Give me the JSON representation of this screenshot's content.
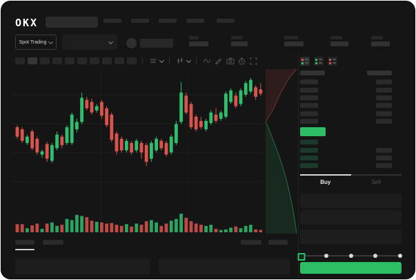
{
  "colors": {
    "up_green": "#2fbd6e",
    "down_red": "#d9544d",
    "accent_green": "#2dbd64",
    "bid_row_green": "#1b3a2b",
    "background": "#151515"
  },
  "header": {
    "logo_text": "OKX",
    "search_value": "",
    "nav_placeholder_count": 5
  },
  "subheader": {
    "market_type_label": "Spot Trading",
    "pair_selector_value": "",
    "stat_placeholder_count": 5
  },
  "chart_toolbar": {
    "timeframe_placeholder_count": 10,
    "active_timeframe_index": 1,
    "icons": [
      "interval-dropdown",
      "chart-type-dropdown",
      "indicators",
      "draw",
      "screenshot",
      "timer",
      "fullscreen"
    ]
  },
  "chart_data": [
    {
      "type": "candlestick",
      "title": "",
      "xlabel": "",
      "ylabel": "",
      "ylim": [
        0,
        100
      ],
      "grid": true,
      "values_normalized_0_100": true,
      "note_visible_labels": "no axis tick labels visible in screenshot",
      "candles_ohlc": [
        [
          50,
          52,
          39,
          41
        ],
        [
          48,
          50,
          35,
          37
        ],
        [
          35,
          43,
          33,
          41
        ],
        [
          46,
          48,
          28,
          30
        ],
        [
          39,
          41,
          24,
          26
        ],
        [
          24,
          29,
          21,
          27
        ],
        [
          34,
          36,
          17,
          20
        ],
        [
          18,
          35,
          16,
          33
        ],
        [
          30,
          46,
          28,
          43
        ],
        [
          41,
          43,
          30,
          33
        ],
        [
          35,
          52,
          33,
          50
        ],
        [
          35,
          64,
          33,
          62
        ],
        [
          48,
          58,
          45,
          55
        ],
        [
          55,
          83,
          53,
          78
        ],
        [
          76,
          79,
          66,
          68
        ],
        [
          74,
          77,
          62,
          64
        ],
        [
          66,
          72,
          64,
          70
        ],
        [
          74,
          76,
          58,
          61
        ],
        [
          68,
          70,
          50,
          52
        ],
        [
          62,
          64,
          36,
          38
        ],
        [
          44,
          46,
          24,
          27
        ],
        [
          39,
          41,
          26,
          28
        ],
        [
          28,
          39,
          26,
          37
        ],
        [
          35,
          37,
          24,
          26
        ],
        [
          28,
          39,
          26,
          37
        ],
        [
          35,
          37,
          20,
          26
        ],
        [
          33,
          35,
          13,
          17
        ],
        [
          20,
          37,
          17,
          35
        ],
        [
          28,
          41,
          26,
          39
        ],
        [
          37,
          39,
          28,
          30
        ],
        [
          35,
          37,
          22,
          24
        ],
        [
          26,
          43,
          24,
          41
        ],
        [
          35,
          56,
          33,
          53
        ],
        [
          55,
          93,
          53,
          83
        ],
        [
          80,
          83,
          62,
          64
        ],
        [
          72,
          74,
          48,
          50
        ],
        [
          60,
          62,
          46,
          48
        ],
        [
          56,
          60,
          48,
          50
        ],
        [
          48,
          58,
          46,
          56
        ],
        [
          54,
          66,
          52,
          64
        ],
        [
          62,
          68,
          54,
          56
        ],
        [
          58,
          66,
          56,
          64
        ],
        [
          60,
          84,
          58,
          82
        ],
        [
          74,
          87,
          72,
          85
        ],
        [
          80,
          83,
          68,
          70
        ],
        [
          72,
          87,
          70,
          85
        ],
        [
          81,
          94,
          79,
          92
        ],
        [
          84,
          97,
          82,
          95
        ],
        [
          88,
          90,
          76,
          79
        ],
        [
          86,
          92,
          80,
          82
        ]
      ],
      "volumes": [
        28,
        28,
        14,
        24,
        30,
        12,
        30,
        34,
        22,
        26,
        46,
        42,
        60,
        56,
        52,
        40,
        36,
        34,
        30,
        32,
        26,
        22,
        28,
        20,
        30,
        26,
        38,
        42,
        34,
        22,
        30,
        40,
        46,
        64,
        50,
        38,
        30,
        26,
        22,
        26,
        12,
        8,
        10,
        16,
        20,
        14,
        22,
        26,
        10,
        8
      ]
    },
    {
      "type": "area",
      "title": "depth",
      "orientation": "vertical",
      "values_normalized_0_100": true,
      "series": [
        {
          "name": "asks",
          "points_y_width": [
            [
              0,
              100
            ],
            [
              3,
              86
            ],
            [
              6,
              74
            ],
            [
              10,
              62
            ],
            [
              14,
              50
            ],
            [
              18,
              40
            ],
            [
              22,
              30
            ],
            [
              26,
              20
            ],
            [
              29,
              10
            ],
            [
              32,
              0
            ]
          ]
        },
        {
          "name": "bids",
          "points_y_width": [
            [
              32,
              0
            ],
            [
              36,
              10
            ],
            [
              41,
              20
            ],
            [
              47,
              32
            ],
            [
              53,
              44
            ],
            [
              60,
              56
            ],
            [
              68,
              68
            ],
            [
              76,
              78
            ],
            [
              84,
              87
            ],
            [
              92,
              94
            ],
            [
              100,
              100
            ]
          ]
        }
      ]
    }
  ],
  "orderbook": {
    "view_modes": [
      "combined-book",
      "bids-only",
      "asks-only"
    ],
    "active_view_index": 0,
    "ask_rows": [
      {
        "left": true,
        "right": true
      },
      {
        "left": true,
        "right": true
      },
      {
        "left": true,
        "right": true
      },
      {
        "left": true,
        "right": true
      },
      {
        "left": true,
        "right": true
      },
      {
        "left": true,
        "right": true
      }
    ],
    "bid_rows": [
      {
        "left": true,
        "right": false
      },
      {
        "left": true,
        "right": true
      },
      {
        "left": true,
        "right": true
      },
      {
        "left": true,
        "right": true
      }
    ]
  },
  "trade_panel": {
    "tabs": [
      {
        "label": "Buy",
        "active": true
      },
      {
        "label": "Sell",
        "active": false
      }
    ],
    "input_row_count": 3,
    "slider": {
      "dot_count": 5,
      "handle_index": 0
    },
    "submit_label": ""
  }
}
